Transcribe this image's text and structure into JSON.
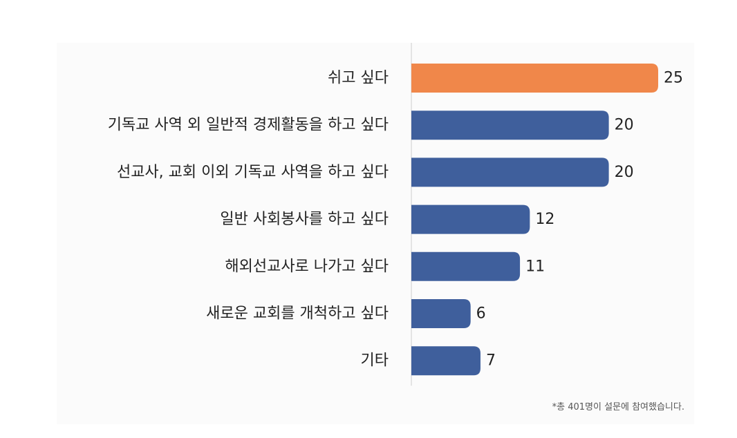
{
  "chart_data": {
    "type": "bar",
    "orientation": "horizontal",
    "categories": [
      "쉬고 싶다",
      "기독교 사역 외 일반적 경제활동을 하고 싶다",
      "선교사, 교회 이외 기독교 사역을 하고 싶다",
      "일반 사회봉사를 하고 싶다",
      "해외선교사로 나가고 싶다",
      "새로운 교회를 개척하고 싶다",
      "기타"
    ],
    "values": [
      25,
      20,
      20,
      12,
      11,
      6,
      7
    ],
    "highlight_index": 0,
    "colors": {
      "highlight": "#F0874A",
      "bar": "#3F5F9C",
      "axis": "#cccccc",
      "text": "#222222"
    },
    "xlim": [
      0,
      25
    ],
    "grid": false,
    "legend": "none"
  },
  "footnote": "*총 401명이 설문에 참여했습니다."
}
